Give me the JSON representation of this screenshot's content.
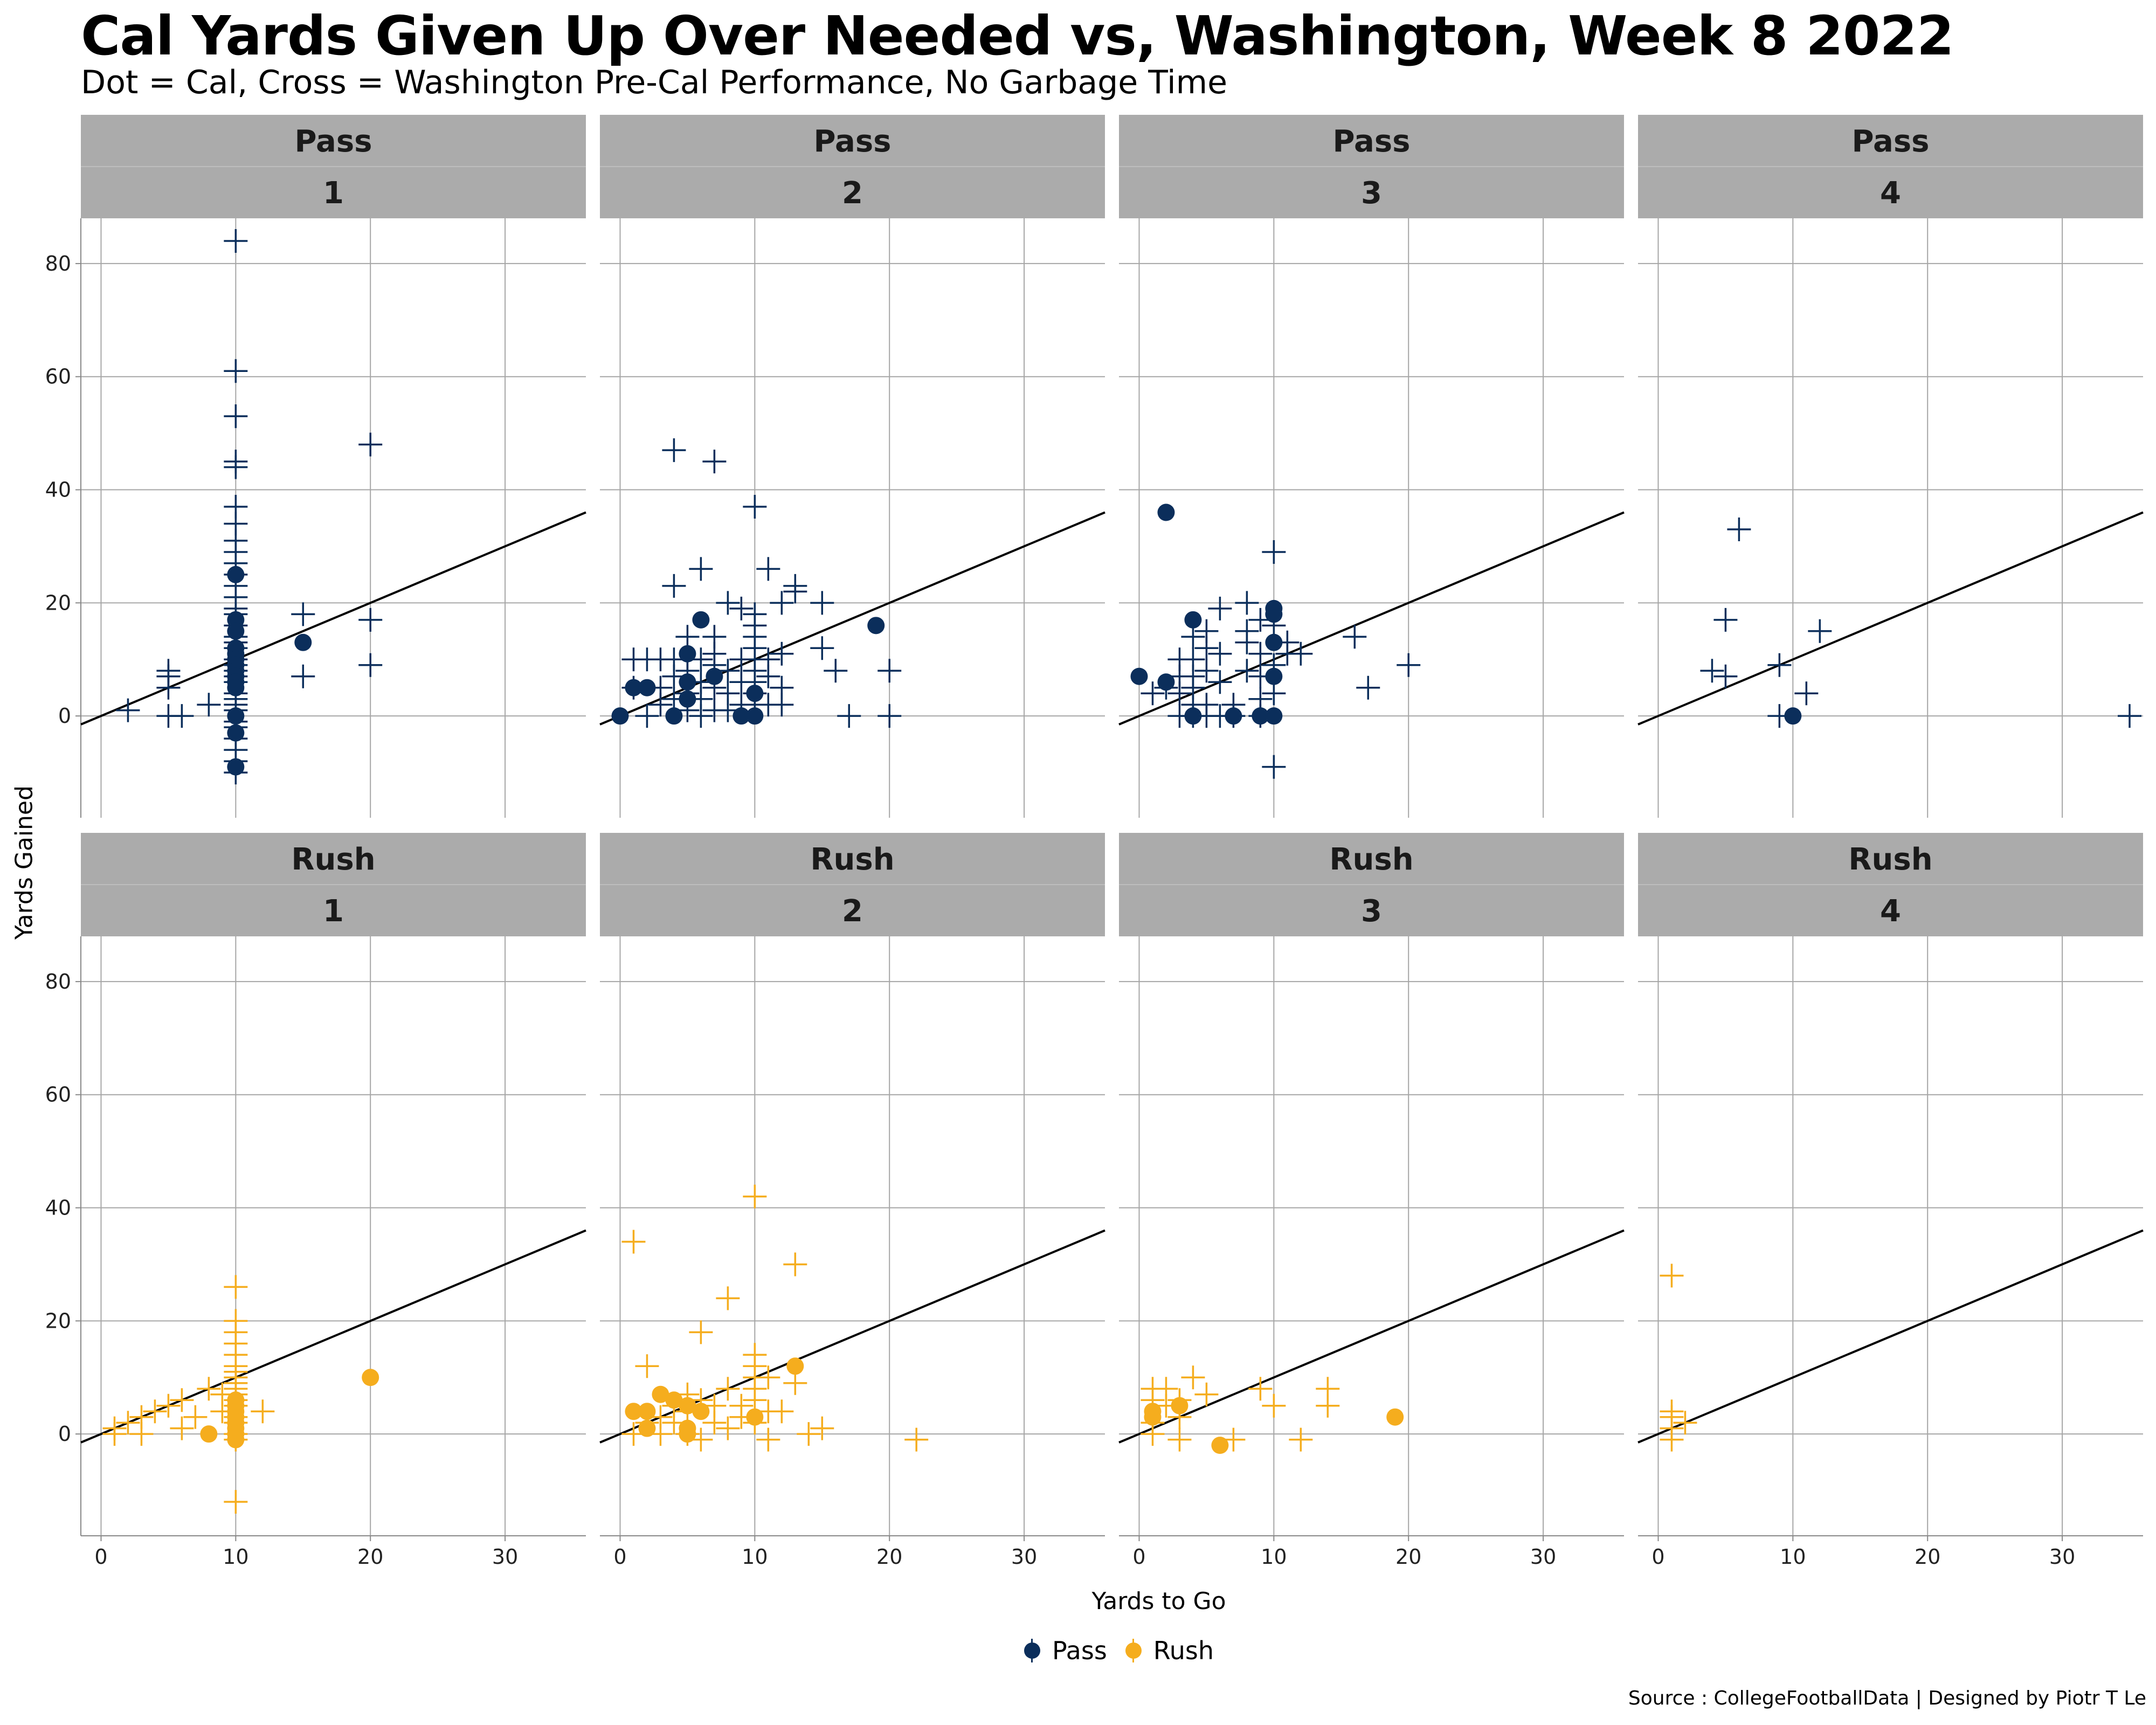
{
  "title": "Cal Yards Given Up Over Needed vs, Washington, Week 8 2022",
  "subtitle": "Dot = Cal, Cross = Washington Pre-Cal Performance, No Garbage Time",
  "caption": "Source : CollegeFootballData | Designed by Piotr T Le",
  "colors": {
    "Pass": "#0b2e5b",
    "Rush": "#f5ad1e",
    "strip": "#ababab",
    "grid": "#a6a6a6"
  },
  "chart_data": {
    "type": "scatter",
    "facets": [
      "play_type",
      "down"
    ],
    "xlabel": "Yards to Go",
    "ylabel": "Yards Gained",
    "xlim": [
      -1.5,
      36
    ],
    "ylim": [
      -18,
      88
    ],
    "xticks": [
      0,
      10,
      20,
      30
    ],
    "yticks": [
      0,
      20,
      40,
      60,
      80
    ],
    "reference_line": {
      "slope": 1,
      "intercept": 0
    },
    "legend": {
      "position": "bottom",
      "entries": [
        "Pass",
        "Rush"
      ]
    },
    "marker_key": {
      "dot": "Cal",
      "cross": "Washington Pre-Cal Performance"
    },
    "panels": [
      {
        "row": "Pass",
        "down": "1",
        "cal": [
          [
            10,
            25
          ],
          [
            10,
            17
          ],
          [
            10,
            15
          ],
          [
            10,
            12
          ],
          [
            10,
            11
          ],
          [
            10,
            10
          ],
          [
            10,
            9
          ],
          [
            10,
            8
          ],
          [
            10,
            7
          ],
          [
            10,
            6
          ],
          [
            10,
            5
          ],
          [
            10,
            0
          ],
          [
            10,
            -3
          ],
          [
            10,
            -9
          ],
          [
            15,
            13
          ]
        ],
        "washington": [
          [
            2,
            1
          ],
          [
            5,
            5
          ],
          [
            5,
            7
          ],
          [
            5,
            8
          ],
          [
            5,
            0
          ],
          [
            6,
            0
          ],
          [
            8,
            2
          ],
          [
            10,
            84
          ],
          [
            10,
            61
          ],
          [
            10,
            53
          ],
          [
            10,
            45
          ],
          [
            10,
            44
          ],
          [
            10,
            37
          ],
          [
            10,
            34
          ],
          [
            10,
            31
          ],
          [
            10,
            29
          ],
          [
            10,
            27
          ],
          [
            10,
            25
          ],
          [
            10,
            23
          ],
          [
            10,
            21
          ],
          [
            10,
            19
          ],
          [
            10,
            18
          ],
          [
            10,
            16
          ],
          [
            10,
            14
          ],
          [
            10,
            13
          ],
          [
            10,
            12
          ],
          [
            10,
            10
          ],
          [
            10,
            9
          ],
          [
            10,
            8
          ],
          [
            10,
            7
          ],
          [
            10,
            6
          ],
          [
            10,
            4
          ],
          [
            10,
            3
          ],
          [
            10,
            2
          ],
          [
            10,
            1
          ],
          [
            10,
            -1
          ],
          [
            10,
            -2
          ],
          [
            10,
            -4
          ],
          [
            10,
            -6
          ],
          [
            10,
            -8
          ],
          [
            10,
            -10
          ],
          [
            15,
            18
          ],
          [
            15,
            7
          ],
          [
            20,
            48
          ],
          [
            20,
            17
          ],
          [
            20,
            9
          ]
        ]
      },
      {
        "row": "Pass",
        "down": "2",
        "cal": [
          [
            0,
            0
          ],
          [
            1,
            5
          ],
          [
            2,
            5
          ],
          [
            4,
            0
          ],
          [
            5,
            11
          ],
          [
            5,
            6
          ],
          [
            5,
            3
          ],
          [
            6,
            17
          ],
          [
            7,
            7
          ],
          [
            9,
            0
          ],
          [
            10,
            4
          ],
          [
            10,
            0
          ],
          [
            19,
            16
          ]
        ],
        "washington": [
          [
            1,
            10
          ],
          [
            1,
            5
          ],
          [
            2,
            10
          ],
          [
            2,
            0
          ],
          [
            3,
            10
          ],
          [
            3,
            5
          ],
          [
            3,
            2
          ],
          [
            4,
            47
          ],
          [
            4,
            23
          ],
          [
            4,
            10
          ],
          [
            4,
            7
          ],
          [
            4,
            3
          ],
          [
            5,
            14
          ],
          [
            5,
            10
          ],
          [
            5,
            8
          ],
          [
            5,
            4
          ],
          [
            5,
            1
          ],
          [
            6,
            26
          ],
          [
            6,
            10
          ],
          [
            6,
            6
          ],
          [
            6,
            3
          ],
          [
            6,
            0
          ],
          [
            7,
            45
          ],
          [
            7,
            14
          ],
          [
            7,
            11
          ],
          [
            7,
            9
          ],
          [
            7,
            5
          ],
          [
            7,
            1
          ],
          [
            8,
            20
          ],
          [
            8,
            8
          ],
          [
            8,
            4
          ],
          [
            8,
            1
          ],
          [
            9,
            19
          ],
          [
            9,
            10
          ],
          [
            9,
            6
          ],
          [
            9,
            2
          ],
          [
            10,
            37
          ],
          [
            10,
            18
          ],
          [
            10,
            16
          ],
          [
            10,
            14
          ],
          [
            10,
            12
          ],
          [
            10,
            10
          ],
          [
            10,
            8
          ],
          [
            10,
            6
          ],
          [
            10,
            4
          ],
          [
            10,
            2
          ],
          [
            11,
            26
          ],
          [
            11,
            10
          ],
          [
            11,
            7
          ],
          [
            11,
            2
          ],
          [
            12,
            20
          ],
          [
            12,
            11
          ],
          [
            12,
            5
          ],
          [
            12,
            2
          ],
          [
            13,
            23
          ],
          [
            13,
            22
          ],
          [
            15,
            20
          ],
          [
            15,
            12
          ],
          [
            16,
            8
          ],
          [
            17,
            0
          ],
          [
            20,
            8
          ],
          [
            20,
            0
          ]
        ]
      },
      {
        "row": "Pass",
        "down": "3",
        "cal": [
          [
            0,
            7
          ],
          [
            2,
            36
          ],
          [
            2,
            6
          ],
          [
            4,
            17
          ],
          [
            4,
            0
          ],
          [
            7,
            0
          ],
          [
            9,
            0
          ],
          [
            10,
            19
          ],
          [
            10,
            18
          ],
          [
            10,
            13
          ],
          [
            10,
            7
          ],
          [
            10,
            0
          ]
        ],
        "washington": [
          [
            1,
            4
          ],
          [
            2,
            5
          ],
          [
            3,
            10
          ],
          [
            3,
            7
          ],
          [
            3,
            4
          ],
          [
            3,
            0
          ],
          [
            4,
            14
          ],
          [
            4,
            10
          ],
          [
            4,
            7
          ],
          [
            4,
            5
          ],
          [
            4,
            2
          ],
          [
            4,
            0
          ],
          [
            5,
            15
          ],
          [
            5,
            12
          ],
          [
            5,
            8
          ],
          [
            5,
            2
          ],
          [
            5,
            0
          ],
          [
            6,
            19
          ],
          [
            6,
            11
          ],
          [
            6,
            6
          ],
          [
            6,
            0
          ],
          [
            7,
            2
          ],
          [
            7,
            0
          ],
          [
            8,
            20
          ],
          [
            8,
            15
          ],
          [
            8,
            13
          ],
          [
            8,
            8
          ],
          [
            9,
            17
          ],
          [
            9,
            11
          ],
          [
            9,
            7
          ],
          [
            9,
            3
          ],
          [
            9,
            0
          ],
          [
            10,
            29
          ],
          [
            10,
            16
          ],
          [
            10,
            9
          ],
          [
            10,
            4
          ],
          [
            10,
            -9
          ],
          [
            11,
            13
          ],
          [
            11,
            11
          ],
          [
            12,
            11
          ],
          [
            16,
            14
          ],
          [
            17,
            5
          ],
          [
            20,
            9
          ]
        ]
      },
      {
        "row": "Pass",
        "down": "4",
        "cal": [
          [
            10,
            0
          ]
        ],
        "washington": [
          [
            4,
            8
          ],
          [
            5,
            17
          ],
          [
            5,
            7
          ],
          [
            6,
            33
          ],
          [
            9,
            9
          ],
          [
            9,
            0
          ],
          [
            11,
            4
          ],
          [
            12,
            15
          ],
          [
            35,
            0
          ]
        ]
      },
      {
        "row": "Rush",
        "down": "1",
        "cal": [
          [
            8,
            0
          ],
          [
            10,
            6
          ],
          [
            10,
            5
          ],
          [
            10,
            4
          ],
          [
            10,
            3
          ],
          [
            10,
            2
          ],
          [
            10,
            1
          ],
          [
            10,
            0
          ],
          [
            10,
            -1
          ],
          [
            20,
            10
          ]
        ],
        "washington": [
          [
            1,
            0
          ],
          [
            1,
            1
          ],
          [
            2,
            2
          ],
          [
            3,
            0
          ],
          [
            3,
            3
          ],
          [
            4,
            4
          ],
          [
            5,
            5
          ],
          [
            6,
            1
          ],
          [
            6,
            6
          ],
          [
            7,
            3
          ],
          [
            8,
            8
          ],
          [
            9,
            4
          ],
          [
            9,
            7
          ],
          [
            10,
            26
          ],
          [
            10,
            20
          ],
          [
            10,
            18
          ],
          [
            10,
            16
          ],
          [
            10,
            14
          ],
          [
            10,
            12
          ],
          [
            10,
            11
          ],
          [
            10,
            10
          ],
          [
            10,
            9
          ],
          [
            10,
            8
          ],
          [
            10,
            7
          ],
          [
            10,
            6
          ],
          [
            10,
            5
          ],
          [
            10,
            3
          ],
          [
            10,
            2
          ],
          [
            10,
            0
          ],
          [
            10,
            -1
          ],
          [
            10,
            -12
          ],
          [
            12,
            4
          ]
        ]
      },
      {
        "row": "Rush",
        "down": "2",
        "cal": [
          [
            1,
            4
          ],
          [
            2,
            4
          ],
          [
            2,
            1
          ],
          [
            3,
            7
          ],
          [
            4,
            6
          ],
          [
            5,
            5
          ],
          [
            5,
            1
          ],
          [
            5,
            0
          ],
          [
            6,
            4
          ],
          [
            10,
            3
          ],
          [
            13,
            12
          ]
        ],
        "washington": [
          [
            1,
            34
          ],
          [
            1,
            0
          ],
          [
            2,
            12
          ],
          [
            2,
            2
          ],
          [
            3,
            3
          ],
          [
            3,
            0
          ],
          [
            4,
            5
          ],
          [
            4,
            2
          ],
          [
            5,
            7
          ],
          [
            5,
            4
          ],
          [
            5,
            0
          ],
          [
            6,
            18
          ],
          [
            6,
            6
          ],
          [
            6,
            -1
          ],
          [
            7,
            2
          ],
          [
            7,
            5
          ],
          [
            8,
            24
          ],
          [
            8,
            8
          ],
          [
            8,
            1
          ],
          [
            9,
            5
          ],
          [
            9,
            3
          ],
          [
            10,
            42
          ],
          [
            10,
            14
          ],
          [
            10,
            12
          ],
          [
            10,
            10
          ],
          [
            10,
            8
          ],
          [
            10,
            6
          ],
          [
            10,
            2
          ],
          [
            11,
            10
          ],
          [
            11,
            4
          ],
          [
            11,
            -1
          ],
          [
            12,
            4
          ],
          [
            13,
            30
          ],
          [
            13,
            9
          ],
          [
            14,
            0
          ],
          [
            15,
            1
          ],
          [
            22,
            -1
          ]
        ]
      },
      {
        "row": "Rush",
        "down": "3",
        "cal": [
          [
            1,
            4
          ],
          [
            1,
            3
          ],
          [
            3,
            5
          ],
          [
            6,
            -2
          ],
          [
            19,
            3
          ]
        ],
        "washington": [
          [
            1,
            8
          ],
          [
            1,
            6
          ],
          [
            1,
            2
          ],
          [
            1,
            0
          ],
          [
            2,
            8
          ],
          [
            2,
            5
          ],
          [
            3,
            6
          ],
          [
            3,
            3
          ],
          [
            3,
            -1
          ],
          [
            4,
            10
          ],
          [
            5,
            7
          ],
          [
            7,
            -1
          ],
          [
            9,
            8
          ],
          [
            10,
            5
          ],
          [
            12,
            -1
          ],
          [
            14,
            8
          ],
          [
            14,
            5
          ]
        ]
      },
      {
        "row": "Rush",
        "down": "4",
        "cal": [],
        "washington": [
          [
            1,
            28
          ],
          [
            1,
            4
          ],
          [
            1,
            3
          ],
          [
            1,
            1
          ],
          [
            1,
            -1
          ],
          [
            2,
            2
          ]
        ]
      }
    ]
  }
}
